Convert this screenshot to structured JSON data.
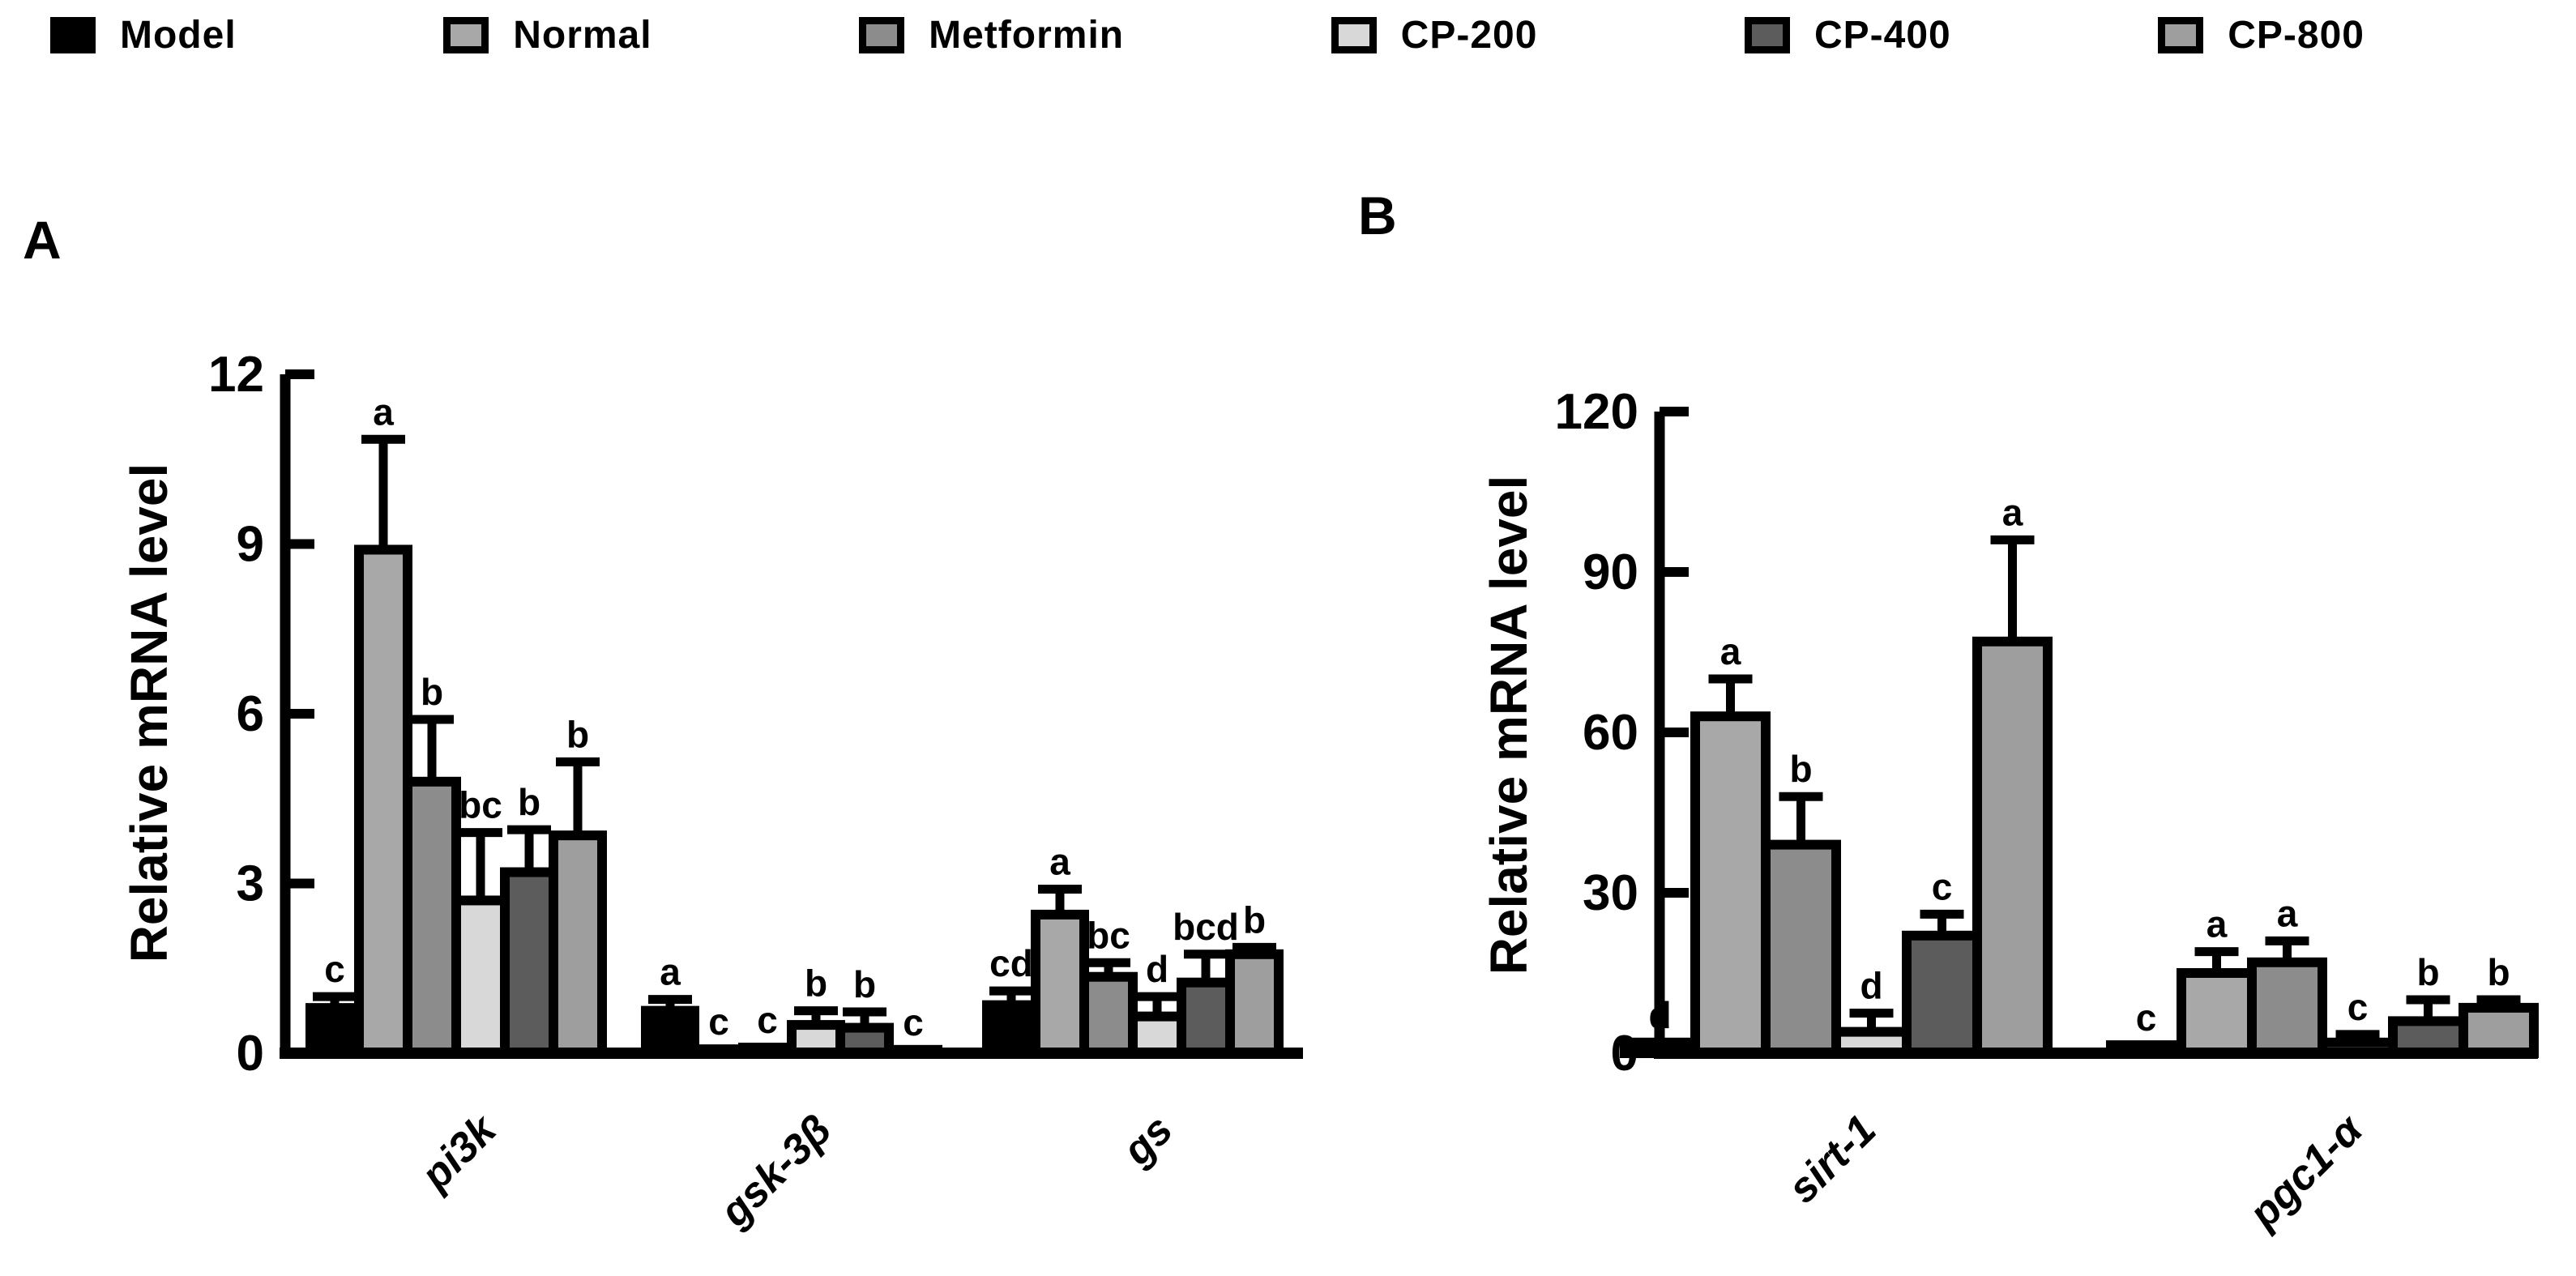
{
  "legend": {
    "items": [
      {
        "label": "Model",
        "color": "#000000"
      },
      {
        "label": "Normal",
        "color": "#A8A8A8"
      },
      {
        "label": "Metformin",
        "color": "#8C8C8C"
      },
      {
        "label": "CP-200",
        "color": "#D8D8D8"
      },
      {
        "label": "CP-400",
        "color": "#5C5C5C"
      },
      {
        "label": "CP-800",
        "color": "#9E9E9E"
      }
    ]
  },
  "panels": [
    {
      "label": "A"
    },
    {
      "label": "B"
    }
  ],
  "chart_data": [
    {
      "type": "bar",
      "panel": "A",
      "title": "",
      "xlabel": "",
      "ylabel": "Relative mRNA level",
      "ylim": [
        0,
        12
      ],
      "yticks": [
        0,
        3,
        6,
        9,
        12
      ],
      "grid": false,
      "legend_position": "top",
      "error_bars": true,
      "categories": [
        "pi3k",
        "gsk-3β",
        "gs"
      ],
      "series": [
        {
          "name": "Model",
          "color": "#000000",
          "values": [
            0.8,
            0.75,
            0.85
          ],
          "errors": [
            0.2,
            0.2,
            0.25
          ],
          "letters": [
            "c",
            "a",
            "cd"
          ]
        },
        {
          "name": "Normal",
          "color": "#A8A8A8",
          "values": [
            8.9,
            0.07,
            2.45
          ],
          "errors": [
            1.95,
            0,
            0.45
          ],
          "letters": [
            "a",
            "c",
            "a"
          ]
        },
        {
          "name": "Metformin",
          "color": "#8C8C8C",
          "values": [
            4.8,
            0.1,
            1.35
          ],
          "errors": [
            1.1,
            0,
            0.25
          ],
          "letters": [
            "b",
            "c",
            "bc"
          ]
        },
        {
          "name": "CP-200",
          "color": "#D8D8D8",
          "values": [
            2.7,
            0.5,
            0.65
          ],
          "errors": [
            1.2,
            0.25,
            0.35
          ],
          "letters": [
            "bc",
            "b",
            "d"
          ]
        },
        {
          "name": "CP-400",
          "color": "#5C5C5C",
          "values": [
            3.2,
            0.45,
            1.25
          ],
          "errors": [
            0.75,
            0.28,
            0.5
          ],
          "letters": [
            "b",
            "b",
            "bcd"
          ]
        },
        {
          "name": "CP-800",
          "color": "#9E9E9E",
          "values": [
            3.85,
            0.06,
            1.75
          ],
          "errors": [
            1.3,
            0,
            0.12
          ],
          "letters": [
            "b",
            "c",
            "b"
          ]
        }
      ]
    },
    {
      "type": "bar",
      "panel": "B",
      "title": "",
      "xlabel": "",
      "ylabel": "Relative mRNA level",
      "ylim": [
        0,
        120
      ],
      "yticks": [
        0,
        30,
        60,
        90,
        120
      ],
      "grid": false,
      "legend_position": "top",
      "error_bars": true,
      "categories": [
        "sirt-1",
        "pgc1-α"
      ],
      "series": [
        {
          "name": "Model",
          "color": "#000000",
          "values": [
            2,
            1.5
          ],
          "errors": [
            0,
            0
          ],
          "letters": [
            "d",
            "c"
          ]
        },
        {
          "name": "Normal",
          "color": "#A8A8A8",
          "values": [
            63,
            15
          ],
          "errors": [
            7,
            4
          ],
          "letters": [
            "a",
            "a"
          ]
        },
        {
          "name": "Metformin",
          "color": "#8C8C8C",
          "values": [
            39,
            17
          ],
          "errors": [
            9,
            4
          ],
          "letters": [
            "b",
            "a"
          ]
        },
        {
          "name": "CP-200",
          "color": "#D8D8D8",
          "values": [
            4,
            2
          ],
          "errors": [
            3.5,
            1.5
          ],
          "letters": [
            "d",
            "c"
          ]
        },
        {
          "name": "CP-400",
          "color": "#5C5C5C",
          "values": [
            22,
            6
          ],
          "errors": [
            4,
            4
          ],
          "letters": [
            "c",
            "b"
          ]
        },
        {
          "name": "CP-800",
          "color": "#9E9E9E",
          "values": [
            77,
            8.5
          ],
          "errors": [
            19,
            1.5
          ],
          "letters": [
            "a",
            "b"
          ]
        }
      ]
    }
  ]
}
